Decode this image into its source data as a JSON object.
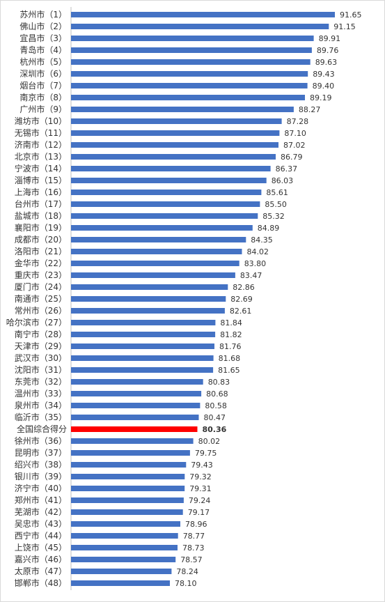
{
  "chart_data": {
    "type": "bar",
    "orientation": "horizontal",
    "title": "",
    "xlabel": "",
    "ylabel": "",
    "grid": false,
    "legend": "none",
    "xlim": [
      0,
      91.65
    ],
    "categories": [
      "苏州市（1）",
      "佛山市（2）",
      "宜昌市（3）",
      "青岛市（4）",
      "杭州市（5）",
      "深圳市（6）",
      "烟台市（7）",
      "南京市（8）",
      "广州市（9）",
      "潍坊市（10）",
      "无锡市（11）",
      "济南市（12）",
      "北京市（13）",
      "宁波市（14）",
      "淄博市（15）",
      "上海市（16）",
      "台州市（17）",
      "盐城市（18）",
      "襄阳市（19）",
      "成都市（20）",
      "洛阳市（21）",
      "金华市（22）",
      "重庆市（23）",
      "厦门市（24）",
      "南通市（25）",
      "常州市（26）",
      "哈尔滨市（27）",
      "南宁市（28）",
      "天津市（29）",
      "武汉市（30）",
      "沈阳市（31）",
      "东莞市（32）",
      "温州市（33）",
      "泉州市（34）",
      "临沂市（35）",
      "全国综合得分",
      "徐州市（36）",
      "昆明市（37）",
      "绍兴市（38）",
      "银川市（39）",
      "济宁市（40）",
      "郑州市（41）",
      "芜湖市（42）",
      "吴忠市（43）",
      "西宁市（44）",
      "上饶市（45）",
      "嘉兴市（46）",
      "太原市（47）",
      "邯郸市（48）"
    ],
    "values": [
      91.65,
      91.15,
      89.91,
      89.76,
      89.63,
      89.43,
      89.4,
      89.19,
      88.27,
      87.28,
      87.1,
      87.02,
      86.79,
      86.37,
      86.03,
      85.61,
      85.5,
      85.32,
      84.89,
      84.35,
      84.02,
      83.8,
      83.47,
      82.86,
      82.69,
      82.61,
      81.84,
      81.82,
      81.76,
      81.68,
      81.65,
      80.83,
      80.68,
      80.58,
      80.47,
      80.36,
      80.02,
      79.75,
      79.43,
      79.32,
      79.31,
      79.24,
      79.17,
      78.96,
      78.77,
      78.73,
      78.57,
      78.24,
      78.1
    ],
    "value_labels": [
      "91.65",
      "91.15",
      "89.91",
      "89.76",
      "89.63",
      "89.43",
      "89.40",
      "89.19",
      "88.27",
      "87.28",
      "87.10",
      "87.02",
      "86.79",
      "86.37",
      "86.03",
      "85.61",
      "85.50",
      "85.32",
      "84.89",
      "84.35",
      "84.02",
      "83.80",
      "83.47",
      "82.86",
      "82.69",
      "82.61",
      "81.84",
      "81.82",
      "81.76",
      "81.68",
      "81.65",
      "80.83",
      "80.68",
      "80.58",
      "80.47",
      "80.36",
      "80.02",
      "79.75",
      "79.43",
      "79.32",
      "79.31",
      "79.24",
      "79.17",
      "78.96",
      "78.77",
      "78.73",
      "78.57",
      "78.24",
      "78.10"
    ],
    "highlight_category": "全国综合得分",
    "colors": {
      "bar": "#4472C4",
      "highlight": "#FF0000",
      "axis": "#BFBFBF",
      "text": "#333333"
    }
  }
}
